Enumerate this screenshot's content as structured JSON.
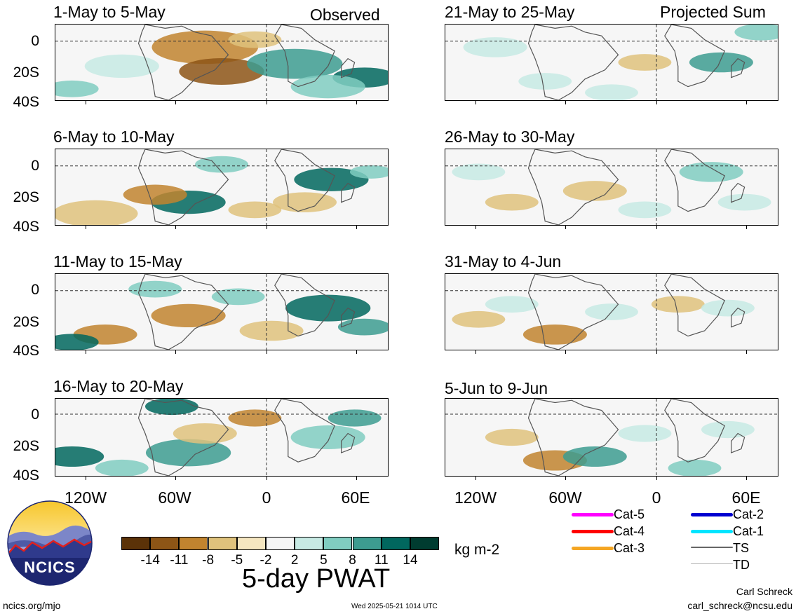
{
  "header": {
    "left": "Observed",
    "right": "Projected Sum"
  },
  "panels_left": [
    {
      "title": "1-May to 5-May"
    },
    {
      "title": "6-May to 10-May"
    },
    {
      "title": "11-May to 15-May"
    },
    {
      "title": "16-May to 20-May"
    }
  ],
  "panels_right": [
    {
      "title": "21-May to 25-May"
    },
    {
      "title": "26-May to 30-May"
    },
    {
      "title": "31-May to 4-Jun"
    },
    {
      "title": "5-Jun to 9-Jun"
    }
  ],
  "y_axis": [
    "0",
    "20S",
    "40S"
  ],
  "x_axis": [
    "120W",
    "60W",
    "0",
    "60E"
  ],
  "colorbar": {
    "colors": [
      "#5b3208",
      "#8d5516",
      "#c1842f",
      "#dfc27c",
      "#f5e6c0",
      "#f5f5f5",
      "#c7eae4",
      "#80cdc1",
      "#3d9c90",
      "#01675e",
      "#003c30"
    ],
    "ticks": [
      "-14",
      "-11",
      "-8",
      "-5",
      "-2",
      "2",
      "5",
      "8",
      "11",
      "14"
    ],
    "units": "kg m-2",
    "title": "5-day PWAT"
  },
  "storm_legend": [
    {
      "label": "Cat-5",
      "color": "#ff00ff"
    },
    {
      "label": "Cat-4",
      "color": "#ff0000"
    },
    {
      "label": "Cat-3",
      "color": "#f5a623"
    },
    {
      "label": "Cat-2",
      "color": "#0000d0"
    },
    {
      "label": "Cat-1",
      "color": "#00e5ff"
    },
    {
      "label": "TS",
      "color": "#666666"
    },
    {
      "label": "TD",
      "color": "#b4b4b4"
    }
  ],
  "logo_text": "NCICS",
  "footer": {
    "site": "ncics.org/mjo",
    "timestamp": "Wed 2025-05-21 1014 UTC",
    "author": "Carl Schreck",
    "email": "carl_schreck@ncsu.edu"
  }
}
